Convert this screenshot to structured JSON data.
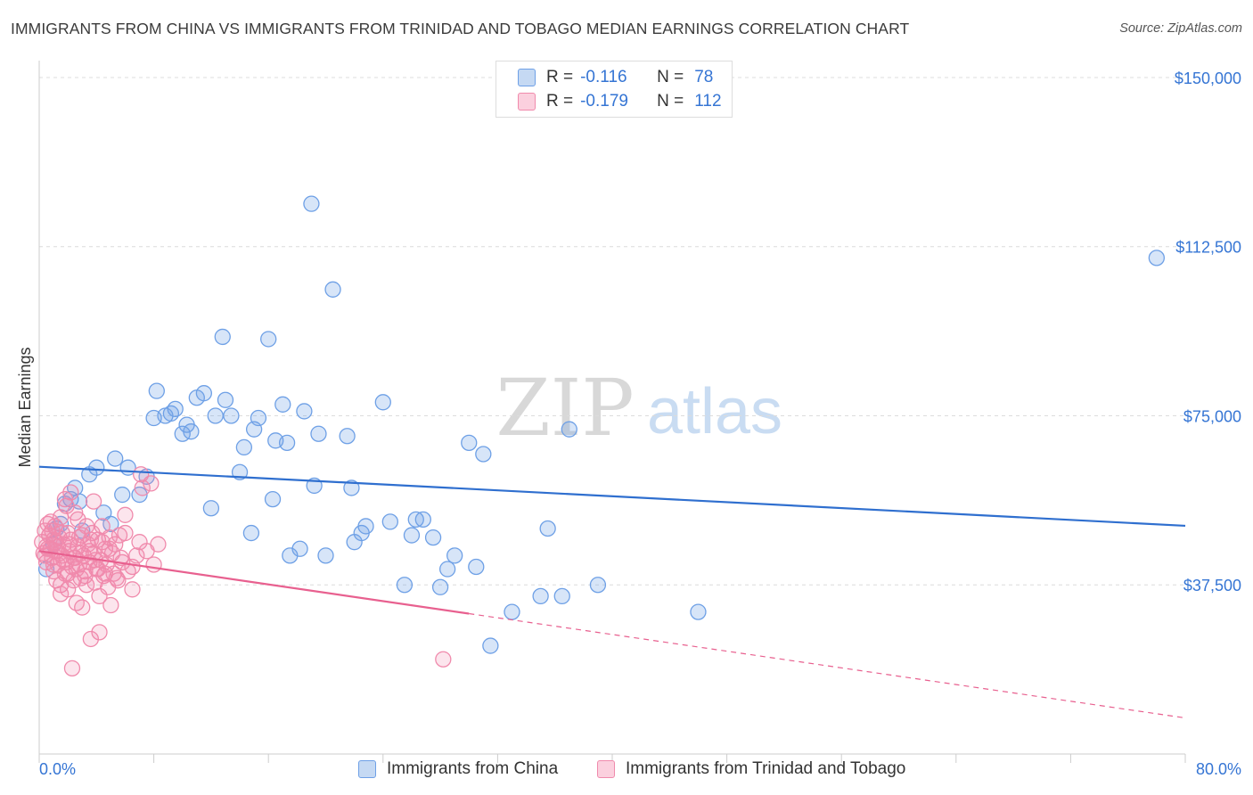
{
  "title": "IMMIGRANTS FROM CHINA VS IMMIGRANTS FROM TRINIDAD AND TOBAGO MEDIAN EARNINGS CORRELATION CHART",
  "source": "Source: ZipAtlas.com",
  "watermark": {
    "zip": "ZIP",
    "atlas": "atlas"
  },
  "legend": {
    "r_label": "R =",
    "n_label": "N =",
    "rows": [
      {
        "r": "-0.116",
        "n": "78",
        "color": "#6ea0e6"
      },
      {
        "r": "-0.179",
        "n": "112",
        "color": "#f08aac"
      }
    ]
  },
  "chart_data": {
    "type": "scatter",
    "ylabel": "Median Earnings",
    "xlim": [
      0,
      80
    ],
    "ylim": [
      0,
      153750
    ],
    "x_tick_labels": {
      "left": "0.0%",
      "right": "80.0%"
    },
    "y_ticks": [
      {
        "value": 37500,
        "label": "$37,500"
      },
      {
        "value": 75000,
        "label": "$75,000"
      },
      {
        "value": 112500,
        "label": "$112,500"
      },
      {
        "value": 150000,
        "label": "$150,000"
      }
    ],
    "series": [
      {
        "name": "Immigrants from China",
        "color": "#6ea0e6",
        "trend_color": "#2f6fcf",
        "trend": {
          "x0": 0,
          "y0": 63700,
          "x1": 80,
          "y1": 50600,
          "solid_until": 80
        },
        "points": [
          [
            0.5,
            41000
          ],
          [
            1.0,
            46500
          ],
          [
            1.2,
            50000
          ],
          [
            1.5,
            51000
          ],
          [
            1.8,
            55500
          ],
          [
            2.2,
            56500
          ],
          [
            2.5,
            59000
          ],
          [
            2.8,
            56000
          ],
          [
            3.5,
            62000
          ],
          [
            4.0,
            63500
          ],
          [
            4.5,
            53500
          ],
          [
            5.0,
            51000
          ],
          [
            5.3,
            65500
          ],
          [
            5.8,
            57500
          ],
          [
            6.2,
            63500
          ],
          [
            7.0,
            57500
          ],
          [
            7.5,
            61500
          ],
          [
            8.0,
            74500
          ],
          [
            8.2,
            80500
          ],
          [
            8.8,
            75000
          ],
          [
            9.2,
            75500
          ],
          [
            9.5,
            76500
          ],
          [
            10.0,
            71000
          ],
          [
            10.3,
            73000
          ],
          [
            10.6,
            71500
          ],
          [
            11.0,
            79000
          ],
          [
            11.5,
            80000
          ],
          [
            12.0,
            54500
          ],
          [
            12.3,
            75000
          ],
          [
            12.8,
            92500
          ],
          [
            13.0,
            78500
          ],
          [
            13.4,
            75000
          ],
          [
            14.0,
            62500
          ],
          [
            14.3,
            68000
          ],
          [
            14.8,
            49000
          ],
          [
            15.0,
            72000
          ],
          [
            15.3,
            74500
          ],
          [
            16.0,
            92000
          ],
          [
            16.3,
            56500
          ],
          [
            16.5,
            69500
          ],
          [
            17.0,
            77500
          ],
          [
            17.3,
            69000
          ],
          [
            17.5,
            44000
          ],
          [
            18.2,
            45500
          ],
          [
            18.5,
            76000
          ],
          [
            19.0,
            122000
          ],
          [
            19.2,
            59500
          ],
          [
            19.5,
            71000
          ],
          [
            20.0,
            44000
          ],
          [
            20.5,
            103000
          ],
          [
            21.5,
            70500
          ],
          [
            21.8,
            59000
          ],
          [
            22.0,
            47000
          ],
          [
            22.5,
            49000
          ],
          [
            22.8,
            50500
          ],
          [
            24.0,
            78000
          ],
          [
            24.5,
            51500
          ],
          [
            25.5,
            37500
          ],
          [
            26.0,
            48500
          ],
          [
            26.3,
            52000
          ],
          [
            26.8,
            52000
          ],
          [
            27.5,
            48000
          ],
          [
            28.0,
            37000
          ],
          [
            28.5,
            41000
          ],
          [
            29.0,
            44000
          ],
          [
            30.0,
            69000
          ],
          [
            30.5,
            41500
          ],
          [
            31.0,
            66500
          ],
          [
            31.5,
            24000
          ],
          [
            33.0,
            31500
          ],
          [
            35.0,
            35000
          ],
          [
            35.5,
            50000
          ],
          [
            36.5,
            35000
          ],
          [
            37.0,
            72000
          ],
          [
            39.0,
            37500
          ],
          [
            46.0,
            31500
          ],
          [
            78.0,
            110000
          ],
          [
            3.0,
            49500
          ]
        ]
      },
      {
        "name": "Immigrants from Trinidad and Tobago",
        "color": "#f08aac",
        "trend_color": "#e8608f",
        "trend": {
          "x0": 0,
          "y0": 45000,
          "x1": 80,
          "y1": 8000,
          "solid_until": 30
        },
        "points": [
          [
            0.2,
            47000
          ],
          [
            0.3,
            44500
          ],
          [
            0.4,
            49500
          ],
          [
            0.5,
            42500
          ],
          [
            0.5,
            46000
          ],
          [
            0.6,
            51000
          ],
          [
            0.7,
            48500
          ],
          [
            0.8,
            45500
          ],
          [
            0.9,
            43500
          ],
          [
            1.0,
            47500
          ],
          [
            1.0,
            40500
          ],
          [
            1.1,
            50500
          ],
          [
            1.2,
            38500
          ],
          [
            1.2,
            45000
          ],
          [
            1.3,
            42000
          ],
          [
            1.4,
            48000
          ],
          [
            1.5,
            37500
          ],
          [
            1.5,
            52500
          ],
          [
            1.6,
            44000
          ],
          [
            1.7,
            46500
          ],
          [
            1.8,
            40000
          ],
          [
            1.8,
            56500
          ],
          [
            1.9,
            42500
          ],
          [
            2.0,
            49000
          ],
          [
            2.0,
            36500
          ],
          [
            2.1,
            45000
          ],
          [
            2.2,
            47500
          ],
          [
            2.3,
            41500
          ],
          [
            2.4,
            38500
          ],
          [
            2.5,
            43500
          ],
          [
            2.5,
            53500
          ],
          [
            2.6,
            33500
          ],
          [
            2.7,
            46000
          ],
          [
            2.8,
            42000
          ],
          [
            2.9,
            39000
          ],
          [
            3.0,
            48500
          ],
          [
            3.0,
            32500
          ],
          [
            3.1,
            44000
          ],
          [
            3.2,
            40500
          ],
          [
            3.3,
            37500
          ],
          [
            3.4,
            46500
          ],
          [
            3.5,
            42500
          ],
          [
            3.6,
            25500
          ],
          [
            3.7,
            49000
          ],
          [
            3.8,
            44500
          ],
          [
            3.9,
            38000
          ],
          [
            4.0,
            41000
          ],
          [
            4.1,
            47500
          ],
          [
            4.2,
            35000
          ],
          [
            4.3,
            43000
          ],
          [
            4.4,
            50500
          ],
          [
            4.5,
            39500
          ],
          [
            4.6,
            45500
          ],
          [
            4.7,
            42000
          ],
          [
            4.8,
            37000
          ],
          [
            4.9,
            48000
          ],
          [
            5.0,
            33000
          ],
          [
            5.1,
            44500
          ],
          [
            5.2,
            40000
          ],
          [
            5.3,
            46500
          ],
          [
            5.5,
            38500
          ],
          [
            5.7,
            43500
          ],
          [
            6.0,
            49000
          ],
          [
            6.5,
            41500
          ],
          [
            7.0,
            47000
          ],
          [
            7.5,
            45000
          ],
          [
            8.0,
            42000
          ],
          [
            2.3,
            19000
          ],
          [
            4.2,
            27000
          ],
          [
            1.5,
            35500
          ],
          [
            2.2,
            58000
          ],
          [
            3.8,
            56000
          ],
          [
            2.8,
            48000
          ],
          [
            3.3,
            50500
          ],
          [
            1.1,
            47000
          ],
          [
            0.9,
            49500
          ],
          [
            1.7,
            43000
          ],
          [
            2.6,
            41000
          ],
          [
            0.6,
            45500
          ],
          [
            1.4,
            44500
          ],
          [
            2.1,
            46500
          ],
          [
            3.5,
            45000
          ],
          [
            4.4,
            47000
          ],
          [
            5.6,
            48500
          ],
          [
            6.2,
            40500
          ],
          [
            6.8,
            44000
          ],
          [
            7.2,
            59000
          ],
          [
            7.8,
            60000
          ],
          [
            7.1,
            62000
          ],
          [
            8.3,
            46500
          ],
          [
            0.8,
            51500
          ],
          [
            1.9,
            55000
          ],
          [
            2.7,
            52000
          ],
          [
            3.6,
            47500
          ],
          [
            4.9,
            45500
          ],
          [
            5.8,
            42500
          ],
          [
            6.5,
            36500
          ],
          [
            0.4,
            44000
          ],
          [
            1.3,
            46000
          ],
          [
            2.4,
            43500
          ],
          [
            3.2,
            39500
          ],
          [
            4.1,
            41000
          ],
          [
            0.7,
            48500
          ],
          [
            1.6,
            49000
          ],
          [
            2.9,
            44500
          ],
          [
            3.9,
            43000
          ],
          [
            4.6,
            40000
          ],
          [
            5.4,
            39000
          ],
          [
            28.2,
            21000
          ],
          [
            6.0,
            53000
          ],
          [
            1.0,
            42000
          ],
          [
            2.0,
            40000
          ]
        ]
      }
    ]
  }
}
